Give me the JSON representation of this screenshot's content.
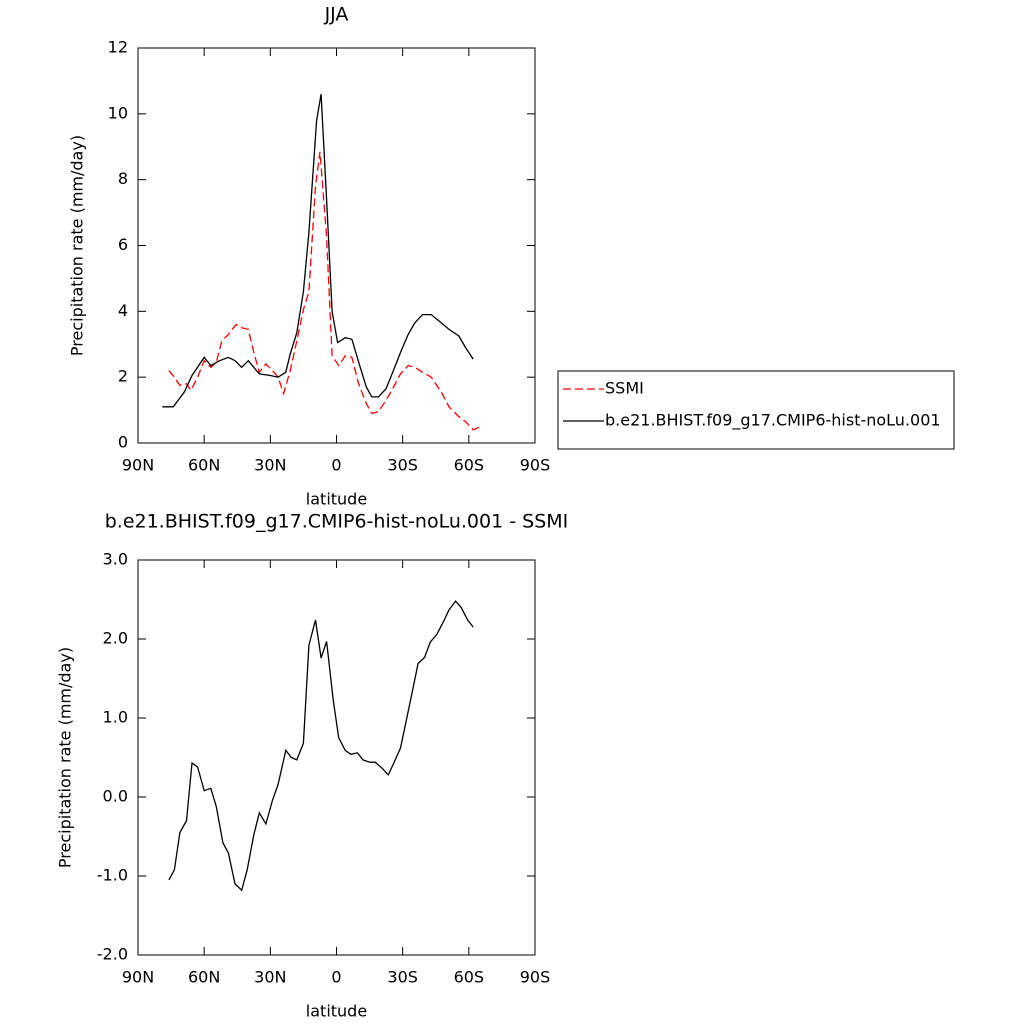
{
  "chart_data": [
    {
      "type": "line",
      "title": "JJA",
      "xlabel": "latitude",
      "ylabel": "Precipitation rate (mm/day)",
      "xlim": [
        90,
        -90
      ],
      "xticks": [
        {
          "value": 90,
          "label": "90N"
        },
        {
          "value": 60,
          "label": "60N"
        },
        {
          "value": 30,
          "label": "30N"
        },
        0,
        {
          "value": -30,
          "label": "30S"
        },
        {
          "value": -60,
          "label": "60S"
        },
        {
          "value": -90,
          "label": "90S"
        }
      ],
      "ylim": [
        0,
        12
      ],
      "yticks": [
        0,
        2,
        4,
        6,
        8,
        10,
        12
      ],
      "legend": "right",
      "series": [
        {
          "name": "SSMI",
          "color": "#ff0000",
          "style": "dashed",
          "x": [
            76,
            73.5,
            71,
            68,
            66,
            63,
            60,
            57,
            54.5,
            52,
            49,
            45.5,
            43,
            40,
            37.5,
            35,
            32,
            29,
            26.5,
            24,
            21,
            18,
            15,
            12.5,
            9.5,
            7.5,
            4.5,
            2,
            -1,
            -4,
            -7,
            -10,
            -13.5,
            -16,
            -19,
            -22.5,
            -25.5,
            -29,
            -32.5,
            -35.5,
            -39,
            -43,
            -47.5,
            -51,
            -55.5,
            -58.5,
            -62,
            -65.5
          ],
          "values": [
            2.2,
            2.0,
            1.75,
            1.8,
            1.6,
            2.0,
            2.5,
            2.3,
            2.45,
            3.1,
            3.3,
            3.6,
            3.5,
            3.45,
            2.75,
            2.15,
            2.4,
            2.2,
            2.0,
            1.5,
            2.2,
            3.1,
            4.05,
            4.6,
            7.8,
            8.85,
            6.25,
            2.65,
            2.35,
            2.65,
            2.6,
            1.8,
            1.2,
            0.9,
            0.95,
            1.3,
            1.65,
            2.1,
            2.35,
            2.3,
            2.15,
            2.0,
            1.55,
            1.1,
            0.8,
            0.65,
            0.4,
            0.5
          ]
        },
        {
          "name": "b.e21.BHIST.f09_g17.CMIP6-hist-noLu.001",
          "color": "#000000",
          "style": "solid",
          "x": [
            79,
            74,
            69,
            65.5,
            60,
            57,
            53,
            49,
            46,
            43,
            40,
            35,
            30,
            26.5,
            23,
            21,
            18,
            15,
            12.5,
            9,
            7,
            4.5,
            2,
            -0.5,
            -4,
            -7,
            -10.5,
            -13.5,
            -16,
            -19,
            -22.5,
            -25.5,
            -29,
            -32.5,
            -35.5,
            -39,
            -43,
            -47.5,
            -51,
            -55.5,
            -58.5,
            -62
          ],
          "values": [
            1.1,
            1.1,
            1.55,
            2.05,
            2.6,
            2.35,
            2.5,
            2.6,
            2.5,
            2.3,
            2.5,
            2.1,
            2.05,
            2.0,
            2.15,
            2.7,
            3.35,
            4.6,
            6.4,
            9.8,
            10.6,
            7.4,
            4.0,
            3.05,
            3.2,
            3.15,
            2.35,
            1.7,
            1.4,
            1.4,
            1.65,
            2.15,
            2.75,
            3.3,
            3.65,
            3.9,
            3.9,
            3.65,
            3.45,
            3.25,
            2.9,
            2.55
          ]
        }
      ]
    },
    {
      "type": "line",
      "title": "b.e21.BHIST.f09_g17.CMIP6-hist-noLu.001 - SSMI",
      "xlabel": "latitude",
      "ylabel": "Precipitation rate (mm/day)",
      "xlim": [
        90,
        -90
      ],
      "xticks": [
        {
          "value": 90,
          "label": "90N"
        },
        {
          "value": 60,
          "label": "60N"
        },
        {
          "value": 30,
          "label": "30N"
        },
        0,
        {
          "value": -30,
          "label": "30S"
        },
        {
          "value": -60,
          "label": "60S"
        },
        {
          "value": -90,
          "label": "90S"
        }
      ],
      "ylim": [
        -2,
        3
      ],
      "yticks": [
        {
          "value": -2,
          "label": "-2.0"
        },
        {
          "value": -1,
          "label": "-1.0"
        },
        {
          "value": 0,
          "label": "0.0"
        },
        {
          "value": 1,
          "label": "1.0"
        },
        {
          "value": 2,
          "label": "2.0"
        },
        {
          "value": 3,
          "label": "3.0"
        }
      ],
      "color": "#000000",
      "style": "solid",
      "x": [
        76,
        73.5,
        71,
        68,
        65.5,
        63,
        60,
        57,
        54.5,
        51.5,
        49,
        46,
        43,
        40.5,
        37.5,
        35,
        32,
        29,
        26.5,
        23,
        20.5,
        18,
        15,
        12.5,
        9.5,
        7,
        4.5,
        1.5,
        -1,
        -4,
        -6.5,
        -9.5,
        -12,
        -15,
        -17.5,
        -20.5,
        -23.5,
        -26,
        -29,
        -31.5,
        -34.5,
        -37,
        -40,
        -42.5,
        -45.5,
        -48.5,
        -51,
        -54,
        -56.5,
        -59.5,
        -62
      ],
      "values": [
        -1.05,
        -0.92,
        -0.45,
        -0.3,
        0.43,
        0.38,
        0.08,
        0.11,
        -0.12,
        -0.58,
        -0.71,
        -1.1,
        -1.18,
        -0.92,
        -0.48,
        -0.2,
        -0.34,
        -0.04,
        0.16,
        0.59,
        0.5,
        0.47,
        0.68,
        1.92,
        2.24,
        1.76,
        1.97,
        1.23,
        0.75,
        0.59,
        0.54,
        0.56,
        0.47,
        0.44,
        0.44,
        0.37,
        0.28,
        0.43,
        0.62,
        0.95,
        1.35,
        1.69,
        1.77,
        1.96,
        2.06,
        2.22,
        2.37,
        2.48,
        2.4,
        2.24,
        2.15
      ]
    }
  ]
}
